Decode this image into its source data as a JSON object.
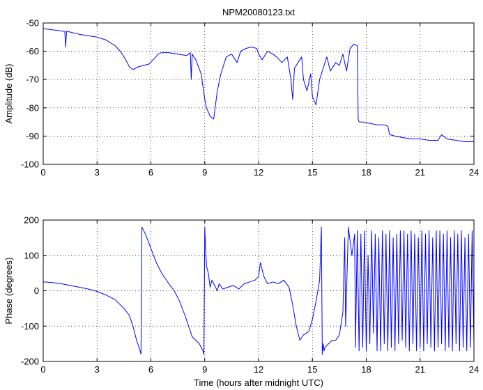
{
  "chart_data": [
    {
      "type": "line",
      "title": "NPM20080123.txt",
      "xlabel": "",
      "ylabel": "Amplitude (dB)",
      "xlim": [
        0,
        24
      ],
      "ylim": [
        -100,
        -50
      ],
      "xticks": [
        0,
        3,
        6,
        9,
        12,
        15,
        18,
        21,
        24
      ],
      "yticks": [
        -50,
        -60,
        -70,
        -80,
        -90,
        -100
      ],
      "grid": true,
      "series": [
        {
          "color": "#0000ff",
          "x": [
            0,
            0.5,
            1.0,
            1.2,
            1.25,
            1.3,
            1.35,
            1.5,
            2.0,
            2.5,
            3.0,
            3.5,
            4.0,
            4.3,
            4.6,
            4.8,
            5.0,
            5.3,
            5.6,
            5.9,
            6.2,
            6.4,
            6.6,
            7.0,
            7.5,
            8.0,
            8.2,
            8.25,
            8.3,
            8.5,
            8.8,
            9.0,
            9.1,
            9.3,
            9.5,
            9.7,
            9.9,
            10.2,
            10.5,
            10.8,
            11.0,
            11.3,
            11.6,
            11.9,
            12.0,
            12.2,
            12.5,
            12.8,
            13.0,
            13.3,
            13.6,
            13.8,
            13.9,
            14.0,
            14.2,
            14.4,
            14.5,
            14.7,
            14.9,
            15.0,
            15.2,
            15.4,
            15.6,
            15.8,
            16.0,
            16.3,
            16.5,
            16.7,
            16.9,
            17.1,
            17.3,
            17.5,
            17.55,
            17.6,
            17.8,
            18.2,
            18.6,
            19.0,
            19.2,
            19.3,
            19.6,
            20.0,
            20.5,
            21.0,
            21.5,
            22.0,
            22.2,
            22.5,
            23.0,
            23.5,
            24.0
          ],
          "y": [
            -52,
            -52.4,
            -52.8,
            -53,
            -58.5,
            -52.9,
            -53,
            -53.2,
            -54,
            -54.5,
            -55,
            -56,
            -58,
            -60,
            -63,
            -65.5,
            -66.5,
            -65.5,
            -65,
            -64.5,
            -62.5,
            -61,
            -60.5,
            -60.5,
            -61,
            -61.5,
            -60.5,
            -70,
            -61,
            -63,
            -68,
            -77,
            -80,
            -83,
            -84,
            -74,
            -68,
            -62,
            -61,
            -64,
            -60,
            -59,
            -58.5,
            -59,
            -61,
            -63,
            -60,
            -61,
            -62,
            -64,
            -62,
            -70,
            -77,
            -66,
            -64,
            -62,
            -70,
            -74,
            -68,
            -76,
            -79,
            -70,
            -66,
            -62,
            -67,
            -64,
            -65,
            -61,
            -67,
            -59,
            -57.5,
            -58,
            -84,
            -85,
            -85,
            -85.5,
            -86,
            -86,
            -86.5,
            -89.5,
            -90,
            -90.5,
            -91,
            -91,
            -91.5,
            -91.5,
            -89.5,
            -91,
            -91.5,
            -92,
            -92
          ]
        }
      ]
    },
    {
      "type": "line",
      "title": "",
      "xlabel": "Time (hours after midnight UTC)",
      "ylabel": "Phase (degrees)",
      "xlim": [
        0,
        24
      ],
      "ylim": [
        -200,
        200
      ],
      "xticks": [
        0,
        3,
        6,
        9,
        12,
        15,
        18,
        21,
        24
      ],
      "yticks": [
        200,
        100,
        0,
        -100,
        -200
      ],
      "grid": true,
      "series": [
        {
          "color": "#0000ff",
          "x": [
            0,
            0.5,
            1.0,
            1.5,
            2.0,
            2.5,
            3.0,
            3.5,
            4.0,
            4.5,
            4.8,
            5.0,
            5.2,
            5.4,
            5.45,
            5.5,
            5.7,
            6.0,
            6.3,
            6.6,
            7.0,
            7.3,
            7.6,
            7.9,
            8.1,
            8.3,
            8.5,
            8.7,
            8.9,
            8.95,
            9.0,
            9.05,
            9.1,
            9.2,
            9.3,
            9.4,
            9.5,
            9.6,
            9.7,
            9.8,
            10.0,
            10.3,
            10.6,
            10.9,
            11.2,
            11.5,
            11.8,
            12.0,
            12.1,
            12.2,
            12.3,
            12.5,
            12.8,
            13.1,
            13.4,
            13.7,
            13.9,
            14.1,
            14.3,
            14.5,
            14.8,
            15.0,
            15.2,
            15.4,
            15.5,
            15.55,
            15.6,
            15.65,
            15.7,
            15.9,
            16.1,
            16.3,
            16.5,
            16.7,
            16.8,
            16.85,
            17.0,
            17.2,
            17.35,
            17.4,
            17.5,
            17.6,
            17.7,
            17.8,
            17.9,
            18.0,
            18.1,
            18.2,
            18.3,
            18.4,
            18.5,
            18.6,
            18.7,
            18.8,
            18.9,
            19.0,
            19.1,
            19.2,
            19.3,
            19.4,
            19.5,
            19.6,
            19.7,
            19.8,
            19.9,
            20.0,
            20.1,
            20.2,
            20.3,
            20.4,
            20.5,
            20.6,
            20.7,
            20.8,
            20.9,
            21.0,
            21.1,
            21.2,
            21.3,
            21.4,
            21.5,
            21.6,
            21.7,
            21.8,
            21.9,
            22.0,
            22.1,
            22.2,
            22.3,
            22.4,
            22.5,
            22.6,
            22.7,
            22.8,
            22.9,
            23.0,
            23.1,
            23.2,
            23.3,
            23.4,
            23.5,
            23.6,
            23.7,
            23.8,
            23.9,
            24.0
          ],
          "y": [
            25,
            23,
            20,
            15,
            10,
            5,
            -2,
            -12,
            -25,
            -50,
            -70,
            -100,
            -140,
            -170,
            -180,
            180,
            160,
            120,
            80,
            50,
            20,
            0,
            -30,
            -70,
            -100,
            -130,
            -140,
            -150,
            -170,
            -180,
            180,
            120,
            70,
            50,
            10,
            30,
            20,
            10,
            0,
            20,
            5,
            10,
            15,
            5,
            20,
            25,
            30,
            40,
            80,
            60,
            40,
            20,
            25,
            20,
            30,
            10,
            -40,
            -100,
            -140,
            -125,
            -115,
            -80,
            -30,
            30,
            180,
            -180,
            -150,
            -170,
            -160,
            -150,
            -140,
            -140,
            -125,
            -60,
            150,
            -100,
            180,
            100,
            160,
            -160,
            170,
            -170,
            160,
            -160,
            170,
            -170,
            100,
            -150,
            170,
            -120,
            160,
            -170,
            150,
            -170,
            170,
            -150,
            160,
            -170,
            170,
            -160,
            150,
            -170,
            160,
            -150,
            170,
            -140,
            170,
            -160,
            160,
            -170,
            170,
            -150,
            160,
            -170,
            150,
            -160,
            170,
            -170,
            160,
            -150,
            170,
            -160,
            150,
            -170,
            170,
            -160,
            170,
            -150,
            160,
            -170,
            170,
            -160,
            150,
            -170,
            170,
            -150,
            160,
            -170,
            170,
            -160,
            150,
            -170,
            160,
            -160,
            170,
            -150
          ]
        }
      ]
    }
  ]
}
